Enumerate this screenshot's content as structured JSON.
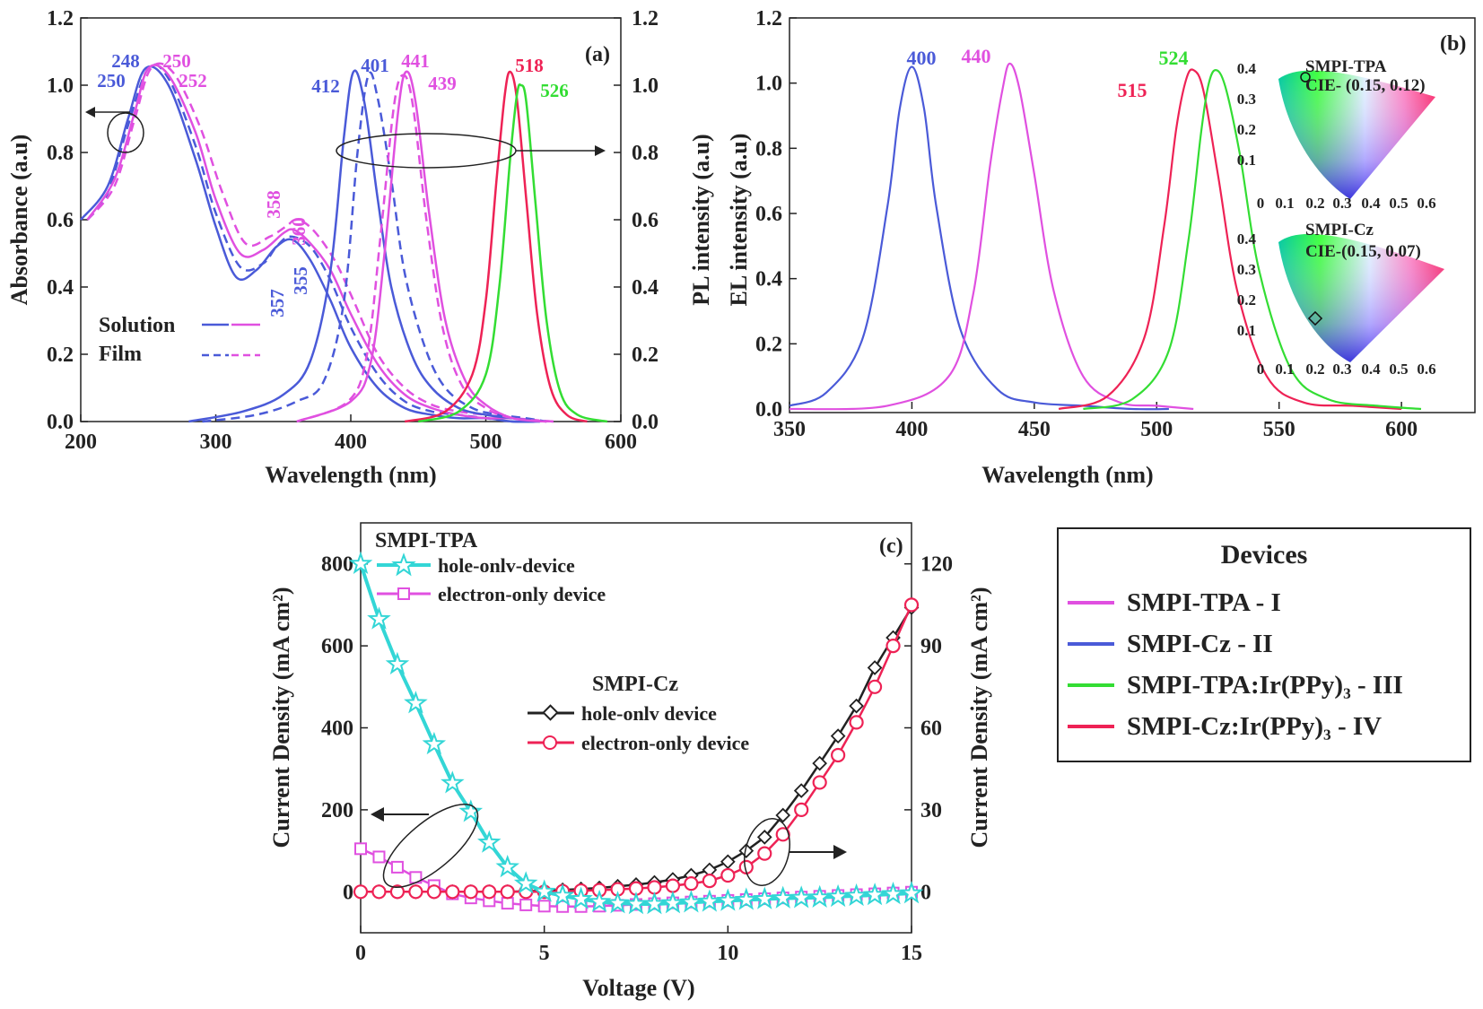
{
  "chart_data": [
    {
      "panel": "(a)",
      "type": "line",
      "xlabel": "Wavelength (nm)",
      "ylabel_left": "Absorbance (a.u)",
      "ylabel_right": "PL intensity (a.u)",
      "xlim": [
        200,
        600
      ],
      "ylim_left": [
        0,
        1.2
      ],
      "ylim_right": [
        0,
        1.2
      ],
      "x_ticks": [
        "200",
        "300",
        "400",
        "500",
        "600"
      ],
      "y_ticks_left": [
        "0.0",
        "0.2",
        "0.4",
        "0.6",
        "0.8",
        "1.0",
        "1.2"
      ],
      "y_ticks_right": [
        "0.0",
        "0.2",
        "0.4",
        "0.6",
        "0.8",
        "1.0",
        "1.2"
      ],
      "legend": [
        {
          "label": "Solution",
          "style": "solid"
        },
        {
          "label": "Film",
          "style": "dashed"
        }
      ],
      "series": [
        {
          "color": "#4a5ad8",
          "style": "solid",
          "kind": "abs",
          "x": [
            200,
            220,
            235,
            248,
            265,
            285,
            300,
            315,
            330,
            345,
            357,
            370,
            385,
            400,
            420,
            440,
            460,
            480,
            500,
            520,
            540
          ],
          "y": [
            0.6,
            0.7,
            0.9,
            1.05,
            1.0,
            0.78,
            0.58,
            0.43,
            0.45,
            0.52,
            0.54,
            0.48,
            0.36,
            0.22,
            0.1,
            0.04,
            0.02,
            0.01,
            0.01,
            0.0,
            0.0
          ]
        },
        {
          "color": "#4a5ad8",
          "style": "dashed",
          "kind": "abs",
          "x": [
            205,
            220,
            235,
            250,
            265,
            285,
            300,
            318,
            335,
            345,
            355,
            370,
            385,
            400,
            420,
            440,
            460,
            480,
            500,
            520,
            540
          ],
          "y": [
            0.6,
            0.68,
            0.88,
            1.05,
            1.02,
            0.82,
            0.62,
            0.46,
            0.47,
            0.52,
            0.55,
            0.52,
            0.42,
            0.28,
            0.14,
            0.06,
            0.03,
            0.02,
            0.01,
            0.0,
            0.0
          ]
        },
        {
          "color": "#e050e0",
          "style": "solid",
          "kind": "abs",
          "x": [
            205,
            225,
            240,
            250,
            265,
            285,
            300,
            318,
            335,
            350,
            358,
            370,
            385,
            400,
            420,
            440,
            460,
            480,
            500,
            520,
            545
          ],
          "y": [
            0.6,
            0.72,
            0.92,
            1.05,
            1.03,
            0.86,
            0.66,
            0.5,
            0.51,
            0.56,
            0.57,
            0.53,
            0.45,
            0.32,
            0.17,
            0.08,
            0.04,
            0.02,
            0.01,
            0.01,
            0.0
          ]
        },
        {
          "color": "#e050e0",
          "style": "dashed",
          "kind": "abs",
          "x": [
            205,
            225,
            240,
            252,
            268,
            288,
            305,
            322,
            340,
            352,
            360,
            372,
            388,
            402,
            420,
            440,
            460,
            480,
            500,
            520,
            550
          ],
          "y": [
            0.6,
            0.7,
            0.9,
            1.05,
            1.04,
            0.88,
            0.68,
            0.53,
            0.55,
            0.58,
            0.6,
            0.57,
            0.48,
            0.36,
            0.2,
            0.1,
            0.05,
            0.03,
            0.02,
            0.01,
            0.0
          ]
        },
        {
          "color": "#4a5ad8",
          "style": "solid",
          "kind": "pl",
          "x": [
            280,
            320,
            350,
            370,
            385,
            395,
            402,
            410,
            420,
            430,
            445,
            460,
            480,
            500,
            520,
            540
          ],
          "y": [
            0.0,
            0.03,
            0.08,
            0.18,
            0.45,
            0.85,
            1.04,
            0.95,
            0.66,
            0.4,
            0.2,
            0.1,
            0.04,
            0.02,
            0.01,
            0.0
          ]
        },
        {
          "color": "#4a5ad8",
          "style": "dashed",
          "kind": "pl",
          "x": [
            290,
            330,
            360,
            380,
            395,
            405,
            413,
            420,
            430,
            440,
            455,
            470,
            490,
            510,
            530,
            545
          ],
          "y": [
            0.0,
            0.02,
            0.06,
            0.12,
            0.36,
            0.8,
            1.03,
            0.96,
            0.72,
            0.44,
            0.22,
            0.1,
            0.04,
            0.02,
            0.01,
            0.0
          ]
        },
        {
          "color": "#e050e0",
          "style": "solid",
          "kind": "pl",
          "x": [
            360,
            400,
            415,
            425,
            435,
            441,
            448,
            458,
            470,
            485,
            500,
            520,
            545
          ],
          "y": [
            0.0,
            0.06,
            0.18,
            0.5,
            0.92,
            1.04,
            0.95,
            0.62,
            0.3,
            0.12,
            0.05,
            0.01,
            0.0
          ]
        },
        {
          "color": "#e050e0",
          "style": "dashed",
          "kind": "pl",
          "x": [
            360,
            398,
            412,
            422,
            432,
            439,
            446,
            456,
            468,
            482,
            500,
            520,
            550
          ],
          "y": [
            0.0,
            0.06,
            0.2,
            0.55,
            0.94,
            1.03,
            0.94,
            0.6,
            0.28,
            0.11,
            0.04,
            0.01,
            0.0
          ]
        },
        {
          "color": "#ee2255",
          "style": "solid",
          "kind": "pl",
          "x": [
            440,
            470,
            490,
            500,
            508,
            514,
            518,
            523,
            530,
            538,
            548,
            560,
            575
          ],
          "y": [
            0.0,
            0.03,
            0.14,
            0.36,
            0.72,
            0.97,
            1.04,
            0.96,
            0.66,
            0.32,
            0.1,
            0.02,
            0.0
          ]
        },
        {
          "color": "#33dd33",
          "style": "solid",
          "kind": "pl",
          "x": [
            450,
            480,
            500,
            510,
            518,
            523,
            526,
            530,
            537,
            545,
            555,
            568,
            590
          ],
          "y": [
            0.0,
            0.03,
            0.14,
            0.4,
            0.78,
            0.97,
            1.0,
            0.95,
            0.64,
            0.3,
            0.09,
            0.02,
            0.0
          ]
        }
      ],
      "annotations": [
        {
          "text": "248",
          "color": "#4a5ad8"
        },
        {
          "text": "250",
          "color": "#4a5ad8"
        },
        {
          "text": "250",
          "color": "#e050e0"
        },
        {
          "text": "252",
          "color": "#e050e0"
        },
        {
          "text": "358",
          "color": "#e050e0"
        },
        {
          "text": "360",
          "color": "#e050e0"
        },
        {
          "text": "357",
          "color": "#4a5ad8"
        },
        {
          "text": "355",
          "color": "#4a5ad8"
        },
        {
          "text": "412",
          "color": "#4a5ad8"
        },
        {
          "text": "401",
          "color": "#4a5ad8"
        },
        {
          "text": "441",
          "color": "#e050e0"
        },
        {
          "text": "439",
          "color": "#e050e0"
        },
        {
          "text": "518",
          "color": "#ee2255"
        },
        {
          "text": "526",
          "color": "#33dd33"
        }
      ]
    },
    {
      "panel": "(b)",
      "type": "line",
      "xlabel": "Wavelength (nm)",
      "ylabel": "EL intensity (a.u)",
      "xlim": [
        350,
        630
      ],
      "ylim": [
        0,
        1.2
      ],
      "x_ticks": [
        "350",
        "400",
        "450",
        "500",
        "550",
        "600"
      ],
      "y_ticks": [
        "0.0",
        "0.2",
        "0.4",
        "0.6",
        "0.8",
        "1.0",
        "1.2"
      ],
      "series": [
        {
          "color": "#4a5ad8",
          "peak": 400,
          "x": [
            350,
            365,
            380,
            390,
            395,
            400,
            405,
            410,
            420,
            435,
            450,
            470,
            490,
            505
          ],
          "y": [
            0.01,
            0.05,
            0.22,
            0.62,
            0.92,
            1.05,
            0.92,
            0.62,
            0.24,
            0.06,
            0.02,
            0.01,
            0.0,
            0.0
          ]
        },
        {
          "color": "#e050e0",
          "peak": 440,
          "x": [
            350,
            390,
            415,
            425,
            432,
            437,
            440,
            444,
            450,
            458,
            470,
            485,
            500,
            515
          ],
          "y": [
            0.0,
            0.01,
            0.1,
            0.35,
            0.75,
            0.98,
            1.06,
            0.98,
            0.72,
            0.36,
            0.1,
            0.02,
            0.01,
            0.0
          ]
        },
        {
          "color": "#ee2255",
          "peak": 515,
          "x": [
            460,
            480,
            495,
            503,
            508,
            512,
            515,
            519,
            525,
            533,
            545,
            560,
            580,
            600
          ],
          "y": [
            0.0,
            0.04,
            0.22,
            0.56,
            0.86,
            1.01,
            1.04,
            0.98,
            0.72,
            0.36,
            0.1,
            0.02,
            0.01,
            0.0
          ]
        },
        {
          "color": "#33dd33",
          "peak": 524,
          "x": [
            470,
            490,
            505,
            513,
            518,
            521,
            524,
            528,
            534,
            542,
            555,
            570,
            590,
            608
          ],
          "y": [
            0.0,
            0.03,
            0.18,
            0.52,
            0.84,
            0.99,
            1.04,
            0.99,
            0.78,
            0.42,
            0.12,
            0.03,
            0.01,
            0.0
          ]
        }
      ],
      "annotations": [
        {
          "text": "400",
          "color": "#4a5ad8"
        },
        {
          "text": "440",
          "color": "#e050e0"
        },
        {
          "text": "515",
          "color": "#ee2255"
        },
        {
          "text": "524",
          "color": "#33dd33"
        }
      ],
      "insets": [
        {
          "label": "SMPI-TPA",
          "cie": "CIE- (0.15, 0.12)",
          "y_ticks": [
            "0.4",
            "0.3",
            "0.2",
            "0.1"
          ],
          "x_ticks": [
            "0",
            "0.1",
            "0.2",
            "0.3",
            "0.4",
            "0.5",
            "0.6"
          ]
        },
        {
          "label": "SMPI-Cz",
          "cie": "CIE-(0.15, 0.07)",
          "y_ticks": [
            "0.4",
            "0.3",
            "0.2",
            "0.1"
          ],
          "x_ticks": [
            "0",
            "0.1",
            "0.2",
            "0.3",
            "0.4",
            "0.5",
            "0.6"
          ]
        }
      ]
    },
    {
      "panel": "(c)",
      "type": "line",
      "xlabel": "Voltage (V)",
      "ylabel_left": "Current Density (mA cm²)",
      "ylabel_right": "Current Density (mA cm²)",
      "xlim": [
        0,
        15
      ],
      "ylim_left": [
        -100,
        900
      ],
      "ylim_right": [
        -15,
        135
      ],
      "x_ticks": [
        "0",
        "5",
        "10",
        "15"
      ],
      "y_ticks_left": [
        "0",
        "200",
        "400",
        "600",
        "800"
      ],
      "y_ticks_right": [
        "0",
        "30",
        "60",
        "90",
        "120"
      ],
      "group_labels": [
        "SMPI-TPA",
        "SMPI-Cz"
      ],
      "series": [
        {
          "name": "hole-onlv-device",
          "group": "SMPI-TPA",
          "color": "#33d6d6",
          "marker": "star",
          "axis": "left",
          "x": [
            0.0,
            0.5,
            1.0,
            1.5,
            2.0,
            2.5,
            3.0,
            3.5,
            4.0,
            4.5,
            5.0,
            5.5,
            6.0,
            6.5,
            7.0,
            7.5,
            8.0,
            8.5,
            9.0,
            9.5,
            10.0,
            10.5,
            11.0,
            11.5,
            12.0,
            12.5,
            13.0,
            13.5,
            14.0,
            14.5,
            15.0
          ],
          "y": [
            800,
            665,
            555,
            460,
            360,
            265,
            195,
            120,
            60,
            20,
            0,
            -10,
            -18,
            -25,
            -28,
            -30,
            -30,
            -28,
            -26,
            -24,
            -22,
            -20,
            -18,
            -16,
            -15,
            -14,
            -12,
            -10,
            -8,
            -6,
            -4
          ]
        },
        {
          "name": "electron-only device",
          "group": "SMPI-TPA",
          "color": "#e050e0",
          "marker": "square",
          "axis": "left",
          "x": [
            0.0,
            0.5,
            1.0,
            1.5,
            2.0,
            2.5,
            3.0,
            3.5,
            4.0,
            4.5,
            5.0,
            5.5,
            6.0,
            6.5,
            7.0,
            7.5,
            8.0,
            8.5,
            9.0,
            9.5,
            10.0,
            10.5,
            11.0,
            11.5,
            12.0,
            12.5,
            13.0,
            13.5,
            14.0,
            14.5,
            15.0
          ],
          "y": [
            105,
            85,
            60,
            35,
            15,
            -5,
            -15,
            -22,
            -28,
            -32,
            -35,
            -36,
            -36,
            -35,
            -33,
            -31,
            -29,
            -27,
            -25,
            -23,
            -21,
            -19,
            -17,
            -15,
            -13,
            -11,
            -9,
            -7,
            -5,
            -3,
            -1
          ]
        },
        {
          "name": "hole-onlv device",
          "group": "SMPI-Cz",
          "color": "#222222",
          "marker": "diamond",
          "axis": "right",
          "x": [
            0.0,
            0.5,
            1.0,
            1.5,
            2.0,
            2.5,
            3.0,
            3.5,
            4.0,
            4.5,
            5.0,
            5.5,
            6.0,
            6.5,
            7.0,
            7.5,
            8.0,
            8.5,
            9.0,
            9.5,
            10.0,
            10.5,
            11.0,
            11.5,
            12.0,
            12.5,
            13.0,
            13.5,
            14.0,
            14.5,
            15.0
          ],
          "y": [
            0,
            0,
            0,
            0,
            0,
            0,
            0,
            0,
            0,
            0.2,
            0.4,
            0.7,
            1.0,
            1.4,
            2.0,
            2.6,
            3.4,
            4.5,
            6,
            8,
            11,
            15,
            20,
            28,
            37,
            47,
            57,
            68,
            82,
            93,
            104
          ]
        },
        {
          "name": "electron-only device",
          "group": "SMPI-Cz",
          "color": "#ee2255",
          "marker": "circle",
          "axis": "right",
          "x": [
            0.0,
            0.5,
            1.0,
            1.5,
            2.0,
            2.5,
            3.0,
            3.5,
            4.0,
            4.5,
            5.0,
            5.5,
            6.0,
            6.5,
            7.0,
            7.5,
            8.0,
            8.5,
            9.0,
            9.5,
            10.0,
            10.5,
            11.0,
            11.5,
            12.0,
            12.5,
            13.0,
            13.5,
            14.0,
            14.5,
            15.0
          ],
          "y": [
            0,
            0,
            0,
            0,
            0,
            0,
            0,
            0,
            0,
            0,
            0,
            0.2,
            0.4,
            0.6,
            0.9,
            1.2,
            1.6,
            2.2,
            3,
            4,
            6,
            9,
            14,
            21,
            30,
            40,
            50,
            62,
            75,
            90,
            105
          ]
        }
      ]
    }
  ],
  "panel_labels": {
    "a": "(a)",
    "b": "(b)",
    "c": "(c)"
  },
  "legend": {
    "title": "Devices",
    "items": [
      {
        "label": "SMPI-TPA  - I",
        "color": "#e050e0"
      },
      {
        "label": "SMPI-Cz - II",
        "color": "#4a5ad8"
      },
      {
        "label": "SMPI-TPA:Ir(PPy)₃  - III",
        "color": "#33dd33"
      },
      {
        "label": "SMPI-Cz:Ir(PPy)₃  - IV",
        "color": "#ee2255"
      }
    ]
  }
}
